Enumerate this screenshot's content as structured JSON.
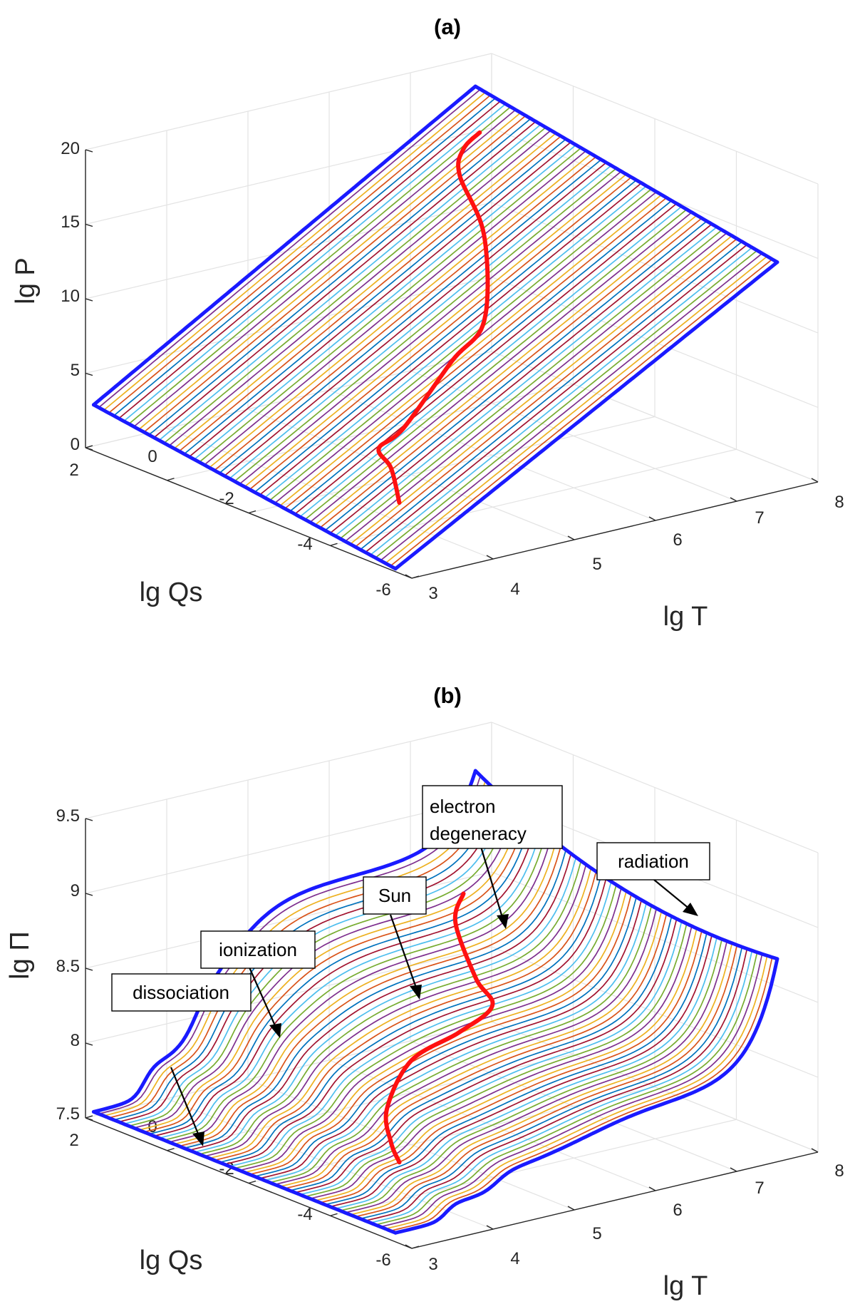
{
  "chart_data": [
    {
      "type": "surface3d",
      "panel": "(a)",
      "xlabel": "lg T",
      "ylabel": "lg Qs",
      "zlabel": "lg P",
      "xlim": [
        3,
        8
      ],
      "ylim": [
        -6,
        2
      ],
      "zlim": [
        0,
        20
      ],
      "x_ticks": [
        "3",
        "4",
        "5",
        "6",
        "7",
        "8"
      ],
      "y_ticks": [
        "-6",
        "-4",
        "-2",
        "0",
        "2"
      ],
      "z_ticks": [
        "0",
        "5",
        "10",
        "15",
        "20"
      ],
      "z_tick_values": [
        0,
        5,
        10,
        15,
        20
      ],
      "surface": {
        "lgT_range": [
          3,
          7.7
        ],
        "lgQs_range": [
          -5.6,
          1.8
        ],
        "qs_lines": 60,
        "description_model": "lg P increases with lg T, nearly independent of lg Qs",
        "corner_values": {
          "T3_Qsmin": 0.2,
          "T3_Qsmax": 3.1,
          "Tmax_Qsmin": 14.7,
          "Tmax_Qsmax": 18.4
        }
      },
      "highlight_edges": [
        {
          "name": "lg T = 3 edge"
        },
        {
          "name": "lg T max edge"
        },
        {
          "name": "lg Qs max edge"
        }
      ],
      "sun_track": {
        "name": "Sun",
        "points": [
          {
            "lgT": 3.7,
            "lgQs": -4.3,
            "lgP": 2.3
          },
          {
            "lgT": 3.9,
            "lgQs": -3.7,
            "lgP": 3.7
          },
          {
            "lgT": 4.1,
            "lgQs": -3.0,
            "lgP": 4.0
          },
          {
            "lgT": 4.5,
            "lgQs": -2.8,
            "lgP": 4.6
          },
          {
            "lgT": 5.2,
            "lgQs": -2.6,
            "lgP": 8.0
          },
          {
            "lgT": 5.8,
            "lgQs": -2.2,
            "lgP": 9.5
          },
          {
            "lgT": 6.3,
            "lgQs": -1.2,
            "lgP": 13.5
          },
          {
            "lgT": 6.5,
            "lgQs": -0.2,
            "lgP": 16.2
          },
          {
            "lgT": 6.8,
            "lgQs": 0.3,
            "lgP": 17.0
          },
          {
            "lgT": 7.1,
            "lgQs": 0.5,
            "lgP": 17.5
          }
        ]
      }
    },
    {
      "type": "surface3d",
      "panel": "(b)",
      "xlabel": "lg T",
      "ylabel": "lg Qs",
      "zlabel": "lg Π",
      "xlim": [
        3,
        8
      ],
      "ylim": [
        -6,
        2
      ],
      "zlim": [
        7.5,
        9.5
      ],
      "x_ticks": [
        "3",
        "4",
        "5",
        "6",
        "7",
        "8"
      ],
      "y_ticks": [
        "-6",
        "-4",
        "-2",
        "0",
        "2"
      ],
      "z_ticks": [
        "7.5",
        "8",
        "8.5",
        "9",
        "9.5"
      ],
      "z_tick_values": [
        7.5,
        8,
        8.5,
        9,
        9.5
      ],
      "surface": {
        "lgT_range": [
          3,
          7.7
        ],
        "lgQs_range": [
          -5.6,
          1.8
        ],
        "qs_lines": 60,
        "features": [
          "dissociation step near lg T 3.7",
          "ionization step near lg T 4.3",
          "electron degeneracy rise at high lg Qs",
          "radiation rise at high lg T"
        ]
      },
      "highlight_edges": [
        {
          "name": "lg T = 3 edge"
        },
        {
          "name": "lg T max edge"
        },
        {
          "name": "lg Qs max edge"
        }
      ],
      "sun_track": {
        "name": "Sun",
        "points": [
          {
            "lgT": 3.7,
            "lgQs": -4.3,
            "lgPi": 7.8
          },
          {
            "lgT": 3.9,
            "lgQs": -3.7,
            "lgPi": 7.84
          },
          {
            "lgT": 4.2,
            "lgQs": -3.0,
            "lgPi": 7.95
          },
          {
            "lgT": 4.6,
            "lgQs": -2.8,
            "lgPi": 8.2
          },
          {
            "lgT": 5.3,
            "lgQs": -2.6,
            "lgPi": 8.28
          },
          {
            "lgT": 6.0,
            "lgQs": -2.0,
            "lgPi": 8.3
          },
          {
            "lgT": 6.4,
            "lgQs": -0.8,
            "lgPi": 8.3
          },
          {
            "lgT": 6.6,
            "lgQs": 0.1,
            "lgPi": 8.55
          },
          {
            "lgT": 6.9,
            "lgQs": 0.5,
            "lgPi": 8.66
          }
        ]
      },
      "annotations": [
        {
          "text": "dissociation"
        },
        {
          "text": "ionization"
        },
        {
          "text": "Sun"
        },
        {
          "text_line1": "electron",
          "text_line2": "degeneracy"
        },
        {
          "text": "radiation"
        }
      ]
    }
  ],
  "palette": [
    "#0072bd",
    "#d95319",
    "#edb120",
    "#7e2f8e",
    "#77ac30",
    "#4dbeee",
    "#a2142f"
  ],
  "edge_color": "#1a1aff",
  "sun_color": "#ff1010"
}
